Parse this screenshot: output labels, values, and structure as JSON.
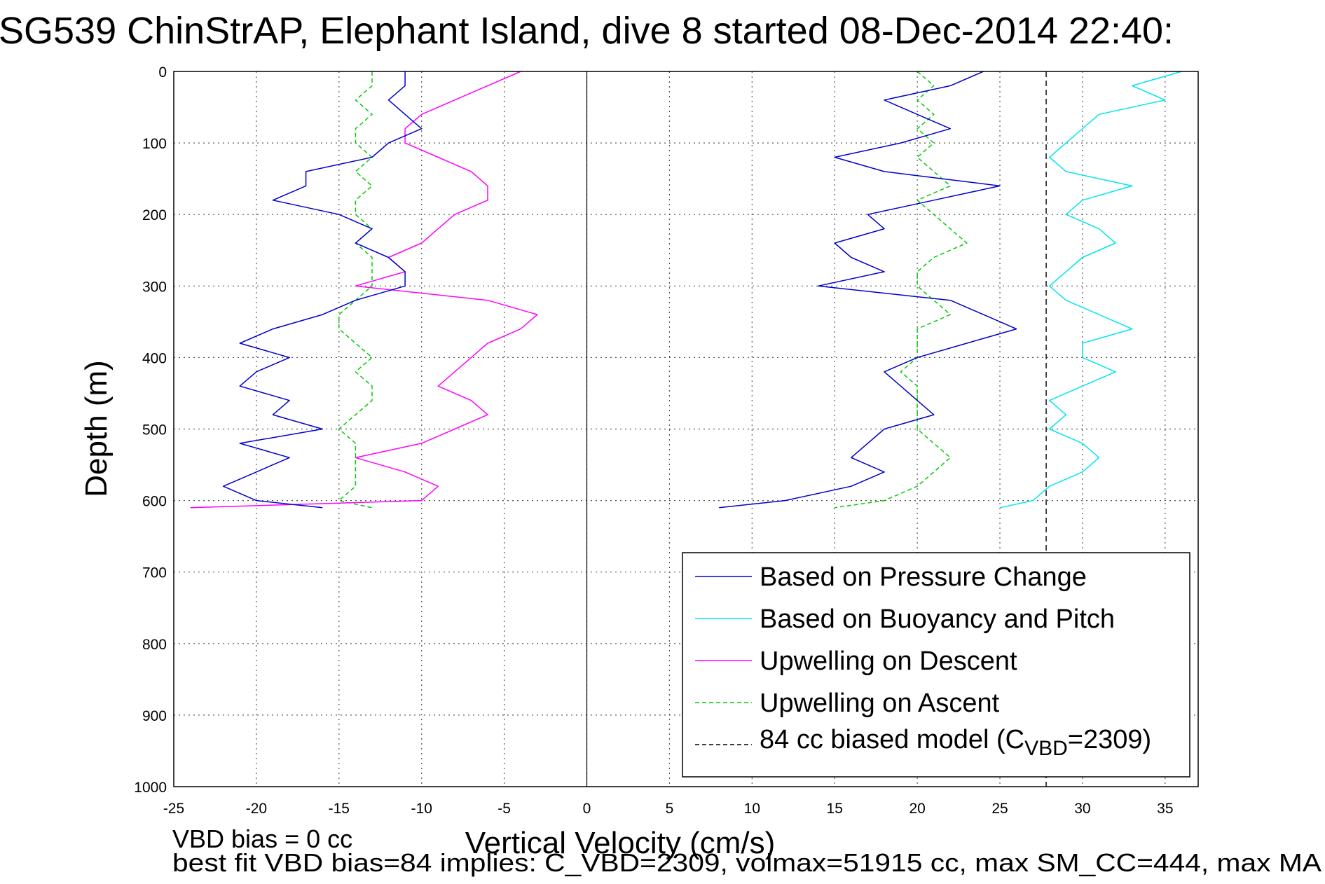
{
  "chart_data": {
    "type": "line",
    "title": "SG539 ChinStrAP, Elephant Island, dive 8 started 08-Dec-2014 22:40:",
    "xlabel": "Vertical Velocity (cm/s)",
    "ylabel": "Depth (m)",
    "xlim": [
      -25,
      37
    ],
    "ylim": [
      0,
      1000
    ],
    "y_reversed": true,
    "grid": true,
    "x_ticks": [
      "-25",
      "-20",
      "-15",
      "-10",
      "-5",
      "0",
      "5",
      "10",
      "15",
      "20",
      "25",
      "30",
      "35"
    ],
    "y_ticks": [
      "0",
      "100",
      "200",
      "300",
      "400",
      "500",
      "600",
      "700",
      "800",
      "900",
      "1000"
    ],
    "legend_position": "bottom-right",
    "zero_line_x": 0,
    "series": [
      {
        "name": "Based on Pressure Change",
        "color": "#0000cc",
        "style": "solid",
        "depth": [
          0,
          20,
          40,
          60,
          80,
          100,
          120,
          140,
          160,
          180,
          200,
          220,
          240,
          260,
          280,
          300,
          320,
          340,
          360,
          380,
          400,
          420,
          440,
          460,
          480,
          500,
          520,
          540,
          560,
          580,
          600,
          610
        ],
        "descent_velocity": [
          -11,
          -11,
          -12,
          -11,
          -10,
          -12,
          -13,
          -17,
          -17,
          -19,
          -15,
          -13,
          -14,
          -12,
          -11,
          -11,
          -14,
          -16,
          -19,
          -21,
          -18,
          -20,
          -21,
          -18,
          -19,
          -16,
          -21,
          -18,
          -20,
          -22,
          -20,
          -16
        ],
        "ascent_velocity": [
          24,
          22,
          18,
          20,
          22,
          19,
          15,
          18,
          25,
          21,
          17,
          18,
          15,
          16,
          18,
          14,
          22,
          24,
          26,
          23,
          20,
          18,
          19,
          20,
          21,
          18,
          17,
          16,
          18,
          16,
          12,
          8
        ]
      },
      {
        "name": "Based on Buoyancy and Pitch",
        "color": "#00e5ee",
        "style": "solid",
        "depth": [
          0,
          20,
          40,
          60,
          80,
          100,
          120,
          140,
          160,
          180,
          200,
          220,
          240,
          260,
          280,
          300,
          320,
          340,
          360,
          380,
          400,
          420,
          440,
          460,
          480,
          500,
          520,
          540,
          560,
          580,
          600,
          610
        ],
        "ascent_velocity": [
          36,
          33,
          35,
          31,
          30,
          29,
          28,
          29,
          33,
          30,
          29,
          31,
          32,
          30,
          29,
          28,
          29,
          31,
          33,
          30,
          30,
          32,
          30,
          28,
          29,
          28,
          30,
          31,
          30,
          28,
          27,
          25
        ]
      },
      {
        "name": "Upwelling on Descent",
        "color": "#ff00ff",
        "style": "solid",
        "depth": [
          0,
          20,
          40,
          60,
          80,
          100,
          120,
          140,
          160,
          180,
          200,
          220,
          240,
          260,
          280,
          300,
          320,
          340,
          360,
          380,
          400,
          420,
          440,
          460,
          480,
          500,
          520,
          540,
          560,
          580,
          600,
          610
        ],
        "velocity": [
          -4,
          -6,
          -8,
          -10,
          -11,
          -11,
          -9,
          -7,
          -6,
          -6,
          -8,
          -9,
          -10,
          -12,
          -11,
          -14,
          -6,
          -3,
          -4,
          -6,
          -7,
          -8,
          -9,
          -7,
          -6,
          -8,
          -10,
          -14,
          -11,
          -9,
          -10,
          -24
        ]
      },
      {
        "name": "Upwelling on Ascent",
        "color": "#00cc00",
        "style": "dashed",
        "depth": [
          0,
          20,
          40,
          60,
          80,
          100,
          120,
          140,
          160,
          180,
          200,
          220,
          240,
          260,
          280,
          300,
          320,
          340,
          360,
          380,
          400,
          420,
          440,
          460,
          480,
          500,
          520,
          540,
          560,
          580,
          600,
          610
        ],
        "descent_side_velocity": [
          -13,
          -13,
          -14,
          -13,
          -14,
          -14,
          -13,
          -14,
          -13,
          -14,
          -14,
          -13,
          -14,
          -13,
          -13,
          -13,
          -14,
          -15,
          -15,
          -14,
          -13,
          -14,
          -13,
          -13,
          -14,
          -15,
          -14,
          -14,
          -14,
          -14,
          -15,
          -13
        ],
        "ascent_side_velocity": [
          20,
          21,
          20,
          21,
          20,
          21,
          20,
          21,
          22,
          20,
          21,
          22,
          23,
          21,
          20,
          20,
          21,
          22,
          20,
          20,
          20,
          19,
          20,
          20,
          20,
          20,
          21,
          22,
          21,
          20,
          18,
          15
        ]
      },
      {
        "name": "84 cc biased model (C",
        "name_sub": "VBD",
        "name_tail": "=2309)",
        "color": "#000000",
        "style": "dashed",
        "x_constant": 27.8
      }
    ]
  },
  "footer": {
    "line1": "VBD bias = 0 cc",
    "line2": "best fit VBD bias=84 implies: C_VBD=2309, volmax=51915 cc, max SM_CC=444, max MA"
  }
}
